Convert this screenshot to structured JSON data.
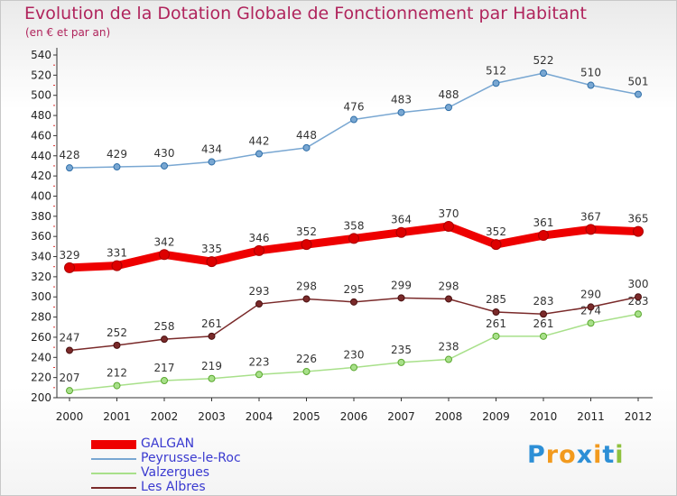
{
  "chart_data": {
    "type": "line",
    "title": "Evolution de la Dotation Globale de Fonctionnement par Habitant",
    "subtitle": "(en € et par an)",
    "x": [
      "2000",
      "2001",
      "2002",
      "2003",
      "2004",
      "2005",
      "2006",
      "2007",
      "2008",
      "2009",
      "2010",
      "2011",
      "2012"
    ],
    "yticks": [
      200,
      220,
      240,
      260,
      280,
      300,
      320,
      340,
      360,
      380,
      400,
      420,
      440,
      460,
      480,
      500,
      520,
      540
    ],
    "ylim": [
      200,
      540
    ],
    "grid": false,
    "legend_position": "bottom-left",
    "series": [
      {
        "name": "GALGAN",
        "color": "#ee0000",
        "values": [
          329,
          331,
          342,
          335,
          346,
          352,
          358,
          364,
          370,
          352,
          361,
          367,
          365
        ]
      },
      {
        "name": "Peyrusse-le-Roc",
        "color": "#79a7d2",
        "values": [
          428,
          429,
          430,
          434,
          442,
          448,
          476,
          483,
          488,
          512,
          522,
          510,
          501
        ]
      },
      {
        "name": "Valzergues",
        "color": "#a8e08a",
        "values": [
          207,
          212,
          217,
          219,
          223,
          226,
          230,
          235,
          238,
          261,
          261,
          274,
          283
        ]
      },
      {
        "name": "Les Albres",
        "color": "#7a2a2a",
        "values": [
          247,
          252,
          258,
          261,
          293,
          298,
          295,
          299,
          298,
          285,
          283,
          290,
          300
        ]
      }
    ]
  },
  "logo": {
    "letters": [
      "P",
      "r",
      "o",
      "x",
      "i",
      "t",
      "i"
    ],
    "colors": [
      "#2d8fd6",
      "#f29a1e",
      "#f29a1e",
      "#2d8fd6",
      "#f29a1e",
      "#2d8fd6",
      "#8fc13e"
    ]
  }
}
